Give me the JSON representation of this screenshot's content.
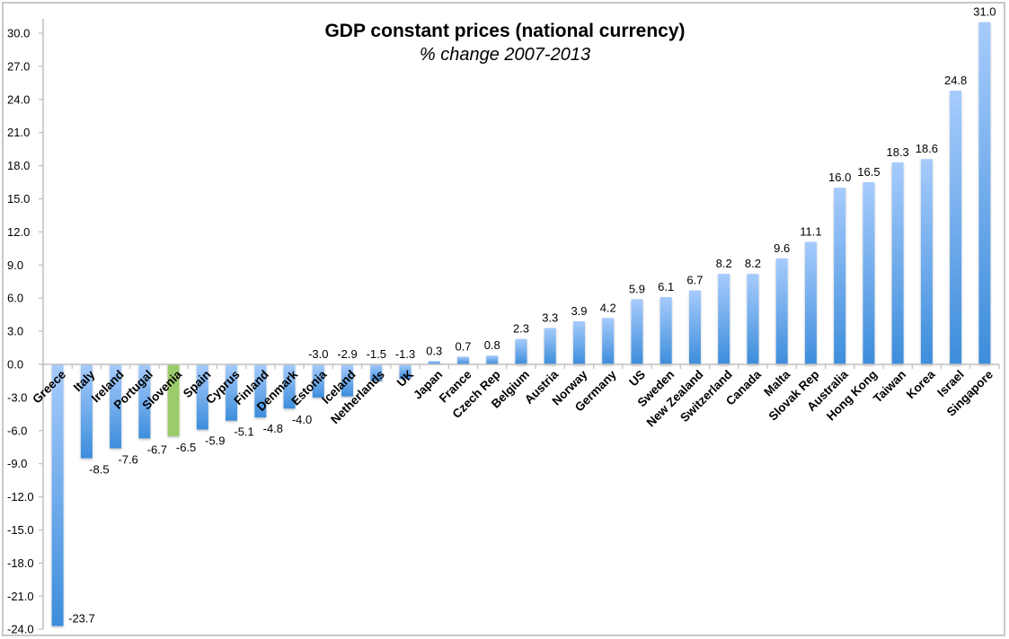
{
  "chart_data": {
    "type": "bar",
    "title": "GDP constant prices (national currency)",
    "subtitle": "% change 2007-2013",
    "xlabel": "",
    "ylabel": "",
    "ylim": [
      -24,
      32
    ],
    "yticks": [
      30,
      27,
      24,
      21,
      18,
      15,
      12,
      9,
      6,
      3,
      0,
      -3,
      -6,
      -9,
      -12,
      -15,
      -18,
      -21,
      -24
    ],
    "ytick_labels": [
      "30.0",
      "27.0",
      "24.0",
      "21.0",
      "18.0",
      "15.0",
      "12.0",
      "9.0",
      "6.0",
      "3.0",
      "0.0",
      "-3.0",
      "-6.0",
      "-9.0",
      "-12.0",
      "-15.0",
      "-18.0",
      "-21.0",
      "-24.0"
    ],
    "grid": false,
    "legend": "none",
    "categories": [
      "Greece",
      "Italy",
      "Ireland",
      "Portugal",
      "Slovenia",
      "Spain",
      "Cyprus",
      "Finland",
      "Denmark",
      "Estonia",
      "Iceland",
      "Netherlands",
      "UK",
      "Japan",
      "France",
      "Czech Rep",
      "Belgium",
      "Austria",
      "Norway",
      "Germany",
      "US",
      "Sweden",
      "New Zealand",
      "Switzerland",
      "Canada",
      "Malta",
      "Slovak Rep",
      "Australia",
      "Hong Kong",
      "Taiwan",
      "Korea",
      "Israel",
      "Singapore"
    ],
    "values": [
      -23.7,
      -8.5,
      -7.6,
      -6.7,
      -6.5,
      -5.9,
      -5.1,
      -4.8,
      -4.0,
      -3.0,
      -2.9,
      -1.5,
      -1.3,
      0.3,
      0.7,
      0.8,
      2.3,
      3.3,
      3.9,
      4.2,
      5.9,
      6.1,
      6.7,
      8.2,
      8.2,
      9.6,
      11.1,
      16.0,
      16.5,
      18.3,
      18.6,
      24.8,
      31.0
    ],
    "data_labels": [
      "-23.7",
      "-8.5",
      "-7.6",
      "-6.7",
      "-6.5",
      "-5.9",
      "-5.1",
      "-4.8",
      "-4.0",
      "-3.0",
      "-2.9",
      "-1.5",
      "-1.3",
      "0.3",
      "0.7",
      "0.8",
      "2.3",
      "3.3",
      "3.9",
      "4.2",
      "5.9",
      "6.1",
      "6.7",
      "8.2",
      "8.2",
      "9.6",
      "11.1",
      "16.0",
      "16.5",
      "18.3",
      "18.6",
      "24.8",
      "31.0"
    ],
    "highlight": {
      "category": "Slovenia",
      "color": "#9bcb6b"
    },
    "colors": {
      "bar_top": "#a6cbfc",
      "bar_bottom": "#3d8ddb",
      "axis": "#bfbfbf"
    }
  }
}
